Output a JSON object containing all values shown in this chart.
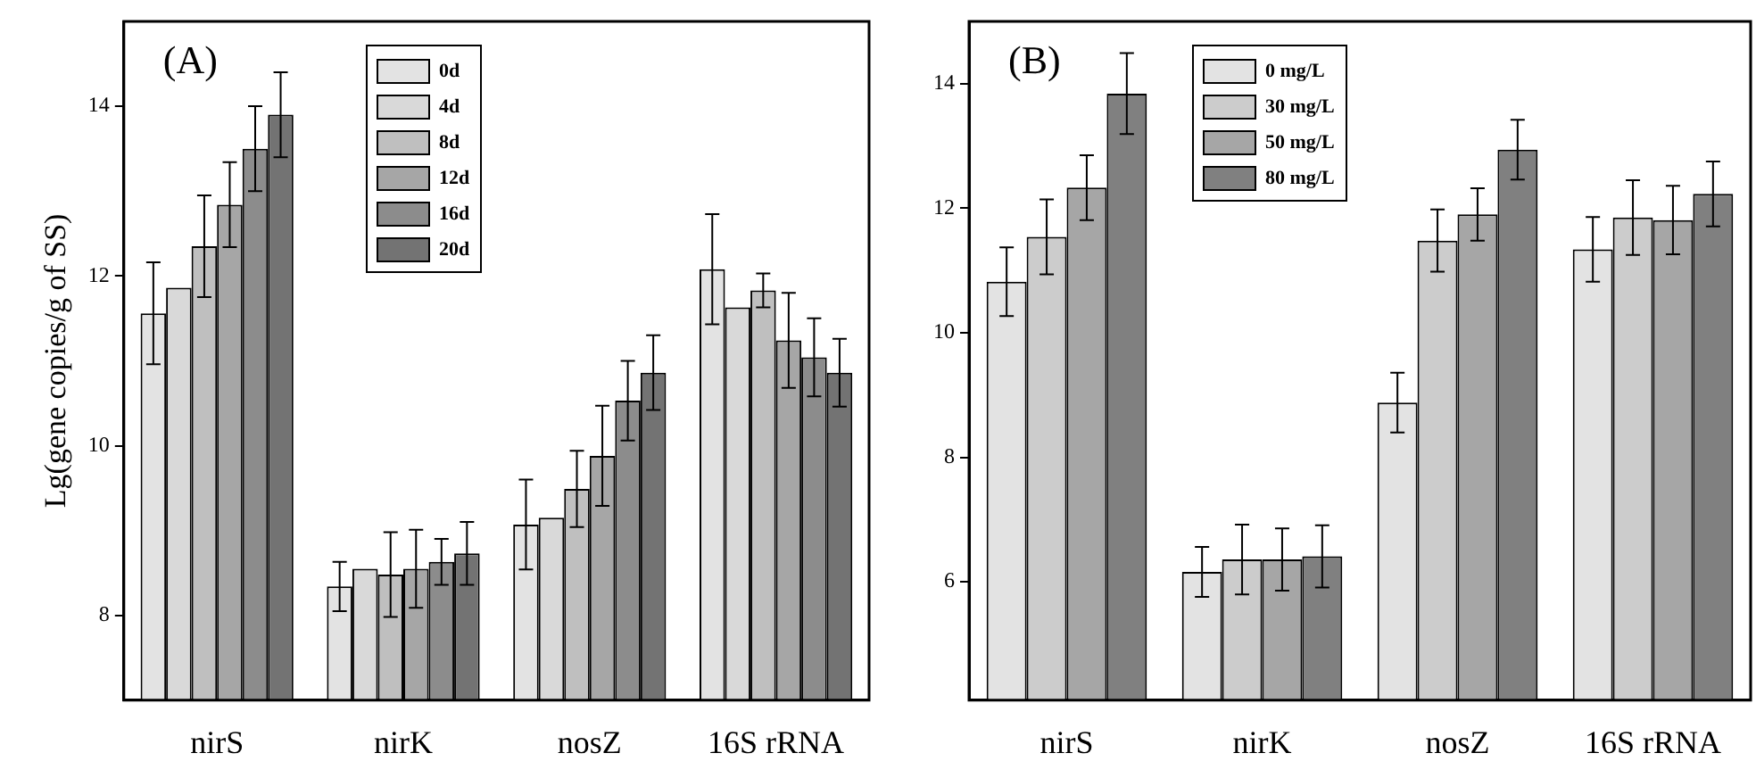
{
  "chart_data": [
    {
      "type": "bar",
      "ylabel": "Lg(gene copies/g of SS)",
      "annotations": [
        "(A)"
      ],
      "categories": [
        "nirS",
        "nirK",
        "nosZ",
        "16S rRNA"
      ],
      "ylim": [
        7,
        15
      ],
      "yticks": [
        8,
        10,
        12,
        14
      ],
      "grid": false,
      "legend": "top",
      "series": [
        {
          "name": "0d",
          "color": "#e3e3e3",
          "values": [
            11.56,
            8.34,
            9.07,
            12.08
          ],
          "errors": [
            0.6,
            0.29,
            0.53,
            0.65
          ]
        },
        {
          "name": "4d",
          "color": "#d9d9d9",
          "values": [
            11.86,
            8.55,
            9.15,
            11.63
          ],
          "errors": [
            null,
            null,
            null,
            null
          ]
        },
        {
          "name": "8d",
          "color": "#bfbfbf",
          "values": [
            12.35,
            8.48,
            9.49,
            11.83
          ],
          "errors": [
            0.6,
            0.5,
            0.45,
            0.2
          ]
        },
        {
          "name": "12d",
          "color": "#a6a6a6",
          "values": [
            12.84,
            8.55,
            9.88,
            11.24
          ],
          "errors": [
            0.5,
            0.46,
            0.59,
            0.56
          ]
        },
        {
          "name": "16d",
          "color": "#8c8c8c",
          "values": [
            13.5,
            8.63,
            10.53,
            11.04
          ],
          "errors": [
            0.5,
            0.27,
            0.47,
            0.46
          ]
        },
        {
          "name": "20d",
          "color": "#737373",
          "values": [
            13.9,
            8.73,
            10.86,
            10.86
          ],
          "errors": [
            0.5,
            0.37,
            0.44,
            0.4
          ]
        }
      ]
    },
    {
      "type": "bar",
      "annotations": [
        "(B)"
      ],
      "categories": [
        "nirS",
        "nirK",
        "nosZ",
        "16S rRNA"
      ],
      "ylim": [
        4.1,
        15
      ],
      "yticks": [
        6,
        8,
        10,
        12,
        14
      ],
      "grid": false,
      "legend": "top",
      "series": [
        {
          "name": "0 mg/L",
          "color": "#e3e3e3",
          "values": [
            10.82,
            6.16,
            8.88,
            11.34
          ],
          "errors": [
            0.55,
            0.4,
            0.48,
            0.52
          ]
        },
        {
          "name": "30 mg/L",
          "color": "#cccccc",
          "values": [
            11.54,
            6.36,
            11.48,
            11.85
          ],
          "errors": [
            0.6,
            0.56,
            0.5,
            0.6
          ]
        },
        {
          "name": "50 mg/L",
          "color": "#a6a6a6",
          "values": [
            12.33,
            6.36,
            11.9,
            11.81
          ],
          "errors": [
            0.52,
            0.5,
            0.42,
            0.55
          ]
        },
        {
          "name": "80 mg/L",
          "color": "#808080",
          "values": [
            13.84,
            6.41,
            12.94,
            12.23
          ],
          "errors": [
            0.65,
            0.5,
            0.48,
            0.52
          ]
        }
      ]
    }
  ]
}
